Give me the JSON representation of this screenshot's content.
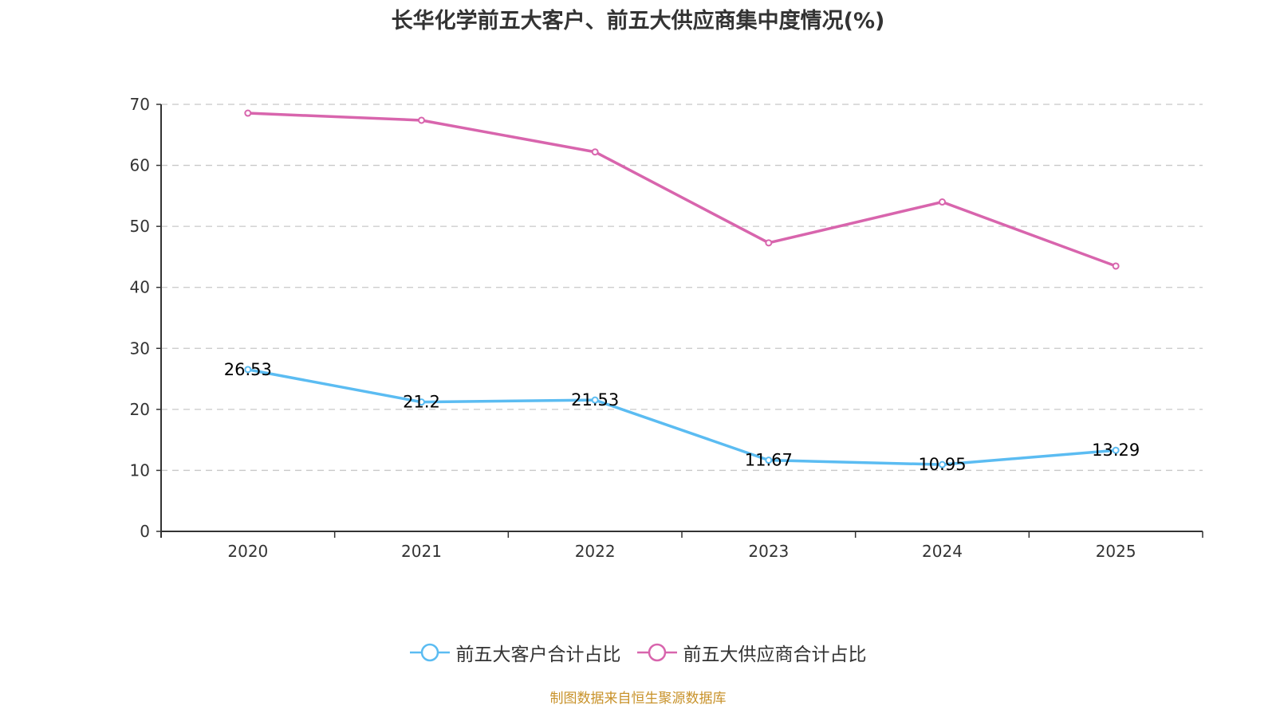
{
  "chart_data": {
    "type": "line",
    "title": "长华化学前五大客户、前五大供应商集中度情况(%)",
    "xlabel": "",
    "ylabel": "",
    "categories": [
      "2020",
      "2021",
      "2022",
      "2023",
      "2024",
      "2025"
    ],
    "ylim": [
      0,
      70
    ],
    "yticks": [
      0,
      10,
      20,
      30,
      40,
      50,
      60,
      70
    ],
    "grid": true,
    "legend_position": "bottom-center",
    "series": [
      {
        "name": "前五大客户合计占比",
        "color": "#5bbcf2",
        "values": [
          26.53,
          21.2,
          21.53,
          11.67,
          10.95,
          13.29
        ],
        "labels_shown": true
      },
      {
        "name": "前五大供应商合计占比",
        "color": "#d865ad",
        "values": [
          68.56,
          67.39,
          62.2,
          47.3,
          54.0,
          43.49
        ],
        "labels_shown": false
      }
    ],
    "source_note": "制图数据来自恒生聚源数据库"
  }
}
